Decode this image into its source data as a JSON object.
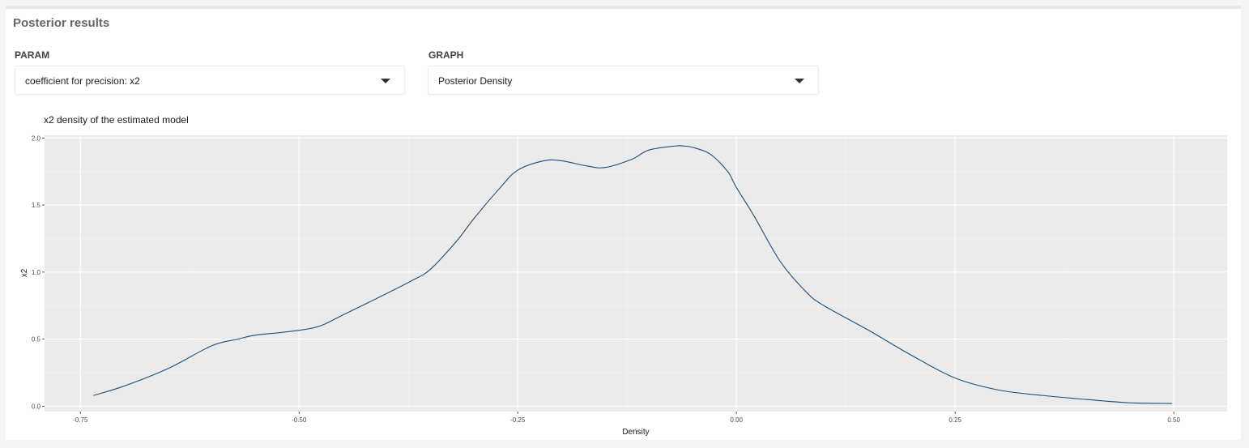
{
  "panel": {
    "title": "Posterior results"
  },
  "param": {
    "label": "PARAM",
    "selected": "coefficient for precision: x2"
  },
  "graph": {
    "label": "GRAPH",
    "selected": "Posterior Density"
  },
  "chart_data": {
    "type": "line",
    "title": "x2 density of the estimated model",
    "xlabel": "Density",
    "ylabel": "x2",
    "xlim": [
      -0.791,
      0.561
    ],
    "ylim": [
      -0.04,
      2.02
    ],
    "x_ticks": [
      -0.75,
      -0.5,
      -0.25,
      0.0,
      0.25,
      0.5
    ],
    "x_tick_labels": [
      "-0.75",
      "-0.50",
      "-0.25",
      "0.00",
      "0.25",
      "0.50"
    ],
    "y_ticks": [
      0.0,
      0.5,
      1.0,
      1.5,
      2.0
    ],
    "y_tick_labels": [
      "0.0",
      "0.5",
      "1.0",
      "1.5",
      "2.0"
    ],
    "grid": true,
    "panel_background": "#ebebeb",
    "line_color": "#1f4e79",
    "series": [
      {
        "x": [
          -0.735,
          -0.7,
          -0.65,
          -0.6,
          -0.57,
          -0.55,
          -0.52,
          -0.48,
          -0.45,
          -0.4,
          -0.37,
          -0.35,
          -0.32,
          -0.3,
          -0.27,
          -0.25,
          -0.22,
          -0.2,
          -0.17,
          -0.15,
          -0.12,
          -0.1,
          -0.07,
          -0.06,
          -0.05,
          -0.03,
          -0.01,
          0.0,
          0.02,
          0.05,
          0.08,
          0.1,
          0.15,
          0.2,
          0.25,
          0.3,
          0.35,
          0.4,
          0.45,
          0.498
        ],
        "y": [
          0.08,
          0.15,
          0.28,
          0.45,
          0.5,
          0.53,
          0.55,
          0.59,
          0.68,
          0.84,
          0.94,
          1.02,
          1.23,
          1.4,
          1.63,
          1.76,
          1.83,
          1.83,
          1.79,
          1.78,
          1.84,
          1.91,
          1.94,
          1.94,
          1.93,
          1.88,
          1.75,
          1.63,
          1.42,
          1.08,
          0.85,
          0.75,
          0.57,
          0.38,
          0.21,
          0.12,
          0.08,
          0.05,
          0.025,
          0.02
        ]
      }
    ]
  }
}
